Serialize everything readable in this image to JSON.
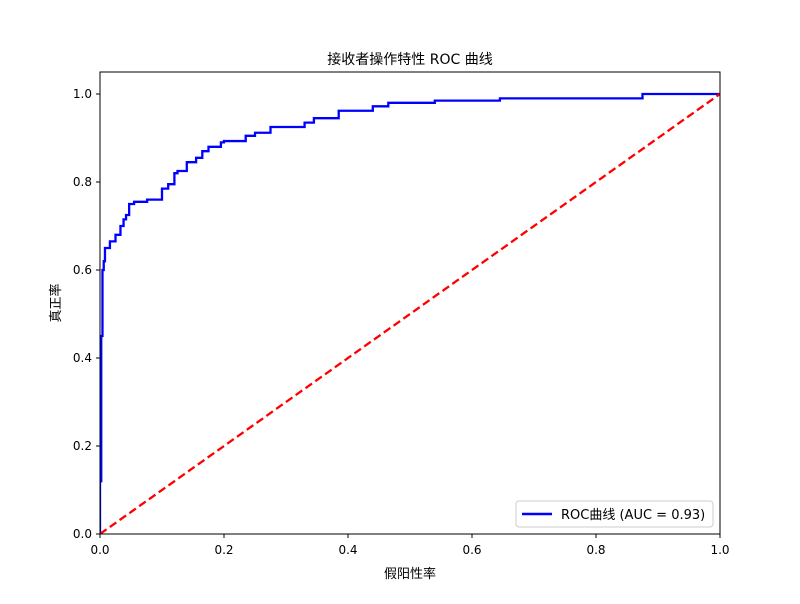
{
  "chart_data": {
    "type": "line",
    "title": "接收者操作特性 ROC 曲线",
    "xlabel": "假阳性率",
    "ylabel": "真正率",
    "xlim": [
      0.0,
      1.0
    ],
    "ylim": [
      0.0,
      1.05
    ],
    "xticks": [
      "0.0",
      "0.2",
      "0.4",
      "0.6",
      "0.8",
      "1.0"
    ],
    "yticks": [
      "0.0",
      "0.2",
      "0.4",
      "0.6",
      "0.8",
      "1.0"
    ],
    "grid": false,
    "legend_position": "lower-right",
    "series": [
      {
        "name": "ROC曲线 (AUC = 0.93)",
        "color": "#0000ff",
        "style": "solid",
        "step": true,
        "x": [
          0.0,
          0.0,
          0.002,
          0.002,
          0.004,
          0.004,
          0.006,
          0.006,
          0.008,
          0.008,
          0.016,
          0.016,
          0.025,
          0.025,
          0.033,
          0.033,
          0.038,
          0.038,
          0.042,
          0.042,
          0.047,
          0.047,
          0.055,
          0.055,
          0.076,
          0.076,
          0.1,
          0.1,
          0.11,
          0.11,
          0.12,
          0.12,
          0.125,
          0.125,
          0.14,
          0.14,
          0.155,
          0.155,
          0.165,
          0.165,
          0.175,
          0.175,
          0.195,
          0.195,
          0.2,
          0.2,
          0.235,
          0.235,
          0.25,
          0.25,
          0.275,
          0.275,
          0.33,
          0.33,
          0.345,
          0.345,
          0.385,
          0.385,
          0.44,
          0.44,
          0.465,
          0.465,
          0.54,
          0.54,
          0.645,
          0.645,
          0.875,
          0.875,
          1.0
        ],
        "y": [
          0.0,
          0.12,
          0.12,
          0.45,
          0.45,
          0.6,
          0.6,
          0.62,
          0.62,
          0.65,
          0.65,
          0.665,
          0.665,
          0.68,
          0.68,
          0.7,
          0.7,
          0.715,
          0.715,
          0.725,
          0.725,
          0.75,
          0.75,
          0.755,
          0.755,
          0.76,
          0.76,
          0.785,
          0.785,
          0.795,
          0.795,
          0.82,
          0.82,
          0.825,
          0.825,
          0.845,
          0.845,
          0.855,
          0.855,
          0.87,
          0.87,
          0.88,
          0.88,
          0.89,
          0.89,
          0.893,
          0.893,
          0.905,
          0.905,
          0.912,
          0.912,
          0.925,
          0.925,
          0.935,
          0.935,
          0.945,
          0.945,
          0.962,
          0.962,
          0.972,
          0.972,
          0.98,
          0.98,
          0.985,
          0.985,
          0.99,
          0.99,
          1.0,
          1.0
        ]
      },
      {
        "name": "",
        "color": "#ff0000",
        "style": "dashed",
        "x": [
          0.0,
          1.0
        ],
        "y": [
          0.0,
          1.0
        ]
      }
    ]
  }
}
